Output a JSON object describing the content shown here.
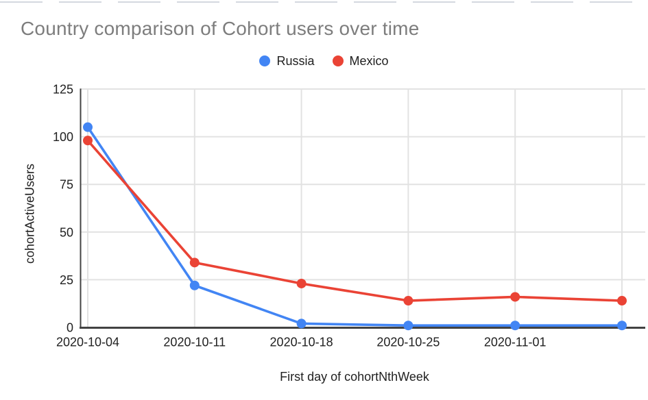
{
  "chart_data": {
    "type": "line",
    "title": "Country comparison of Cohort users over time",
    "xlabel": "First day of cohortNthWeek",
    "ylabel": "cohortActiveUsers",
    "x_tick_labels": [
      "2020-10-04",
      "2020-10-11",
      "2020-10-18",
      "2020-10-25",
      "2020-11-01",
      ""
    ],
    "yticks": [
      0,
      25,
      50,
      75,
      100,
      125
    ],
    "ylim": [
      0,
      125
    ],
    "grid": true,
    "legend_position": "top",
    "series": [
      {
        "name": "Russia",
        "color": "#4285F4",
        "values": [
          105,
          22,
          2,
          1,
          1,
          1
        ]
      },
      {
        "name": "Mexico",
        "color": "#EA4335",
        "values": [
          98,
          34,
          23,
          14,
          16,
          14
        ]
      }
    ],
    "colors": {
      "gridline": "#e2e2e2",
      "axis": "#424242",
      "tick_label": "#212121",
      "title_text": "#7d7d7d"
    }
  }
}
